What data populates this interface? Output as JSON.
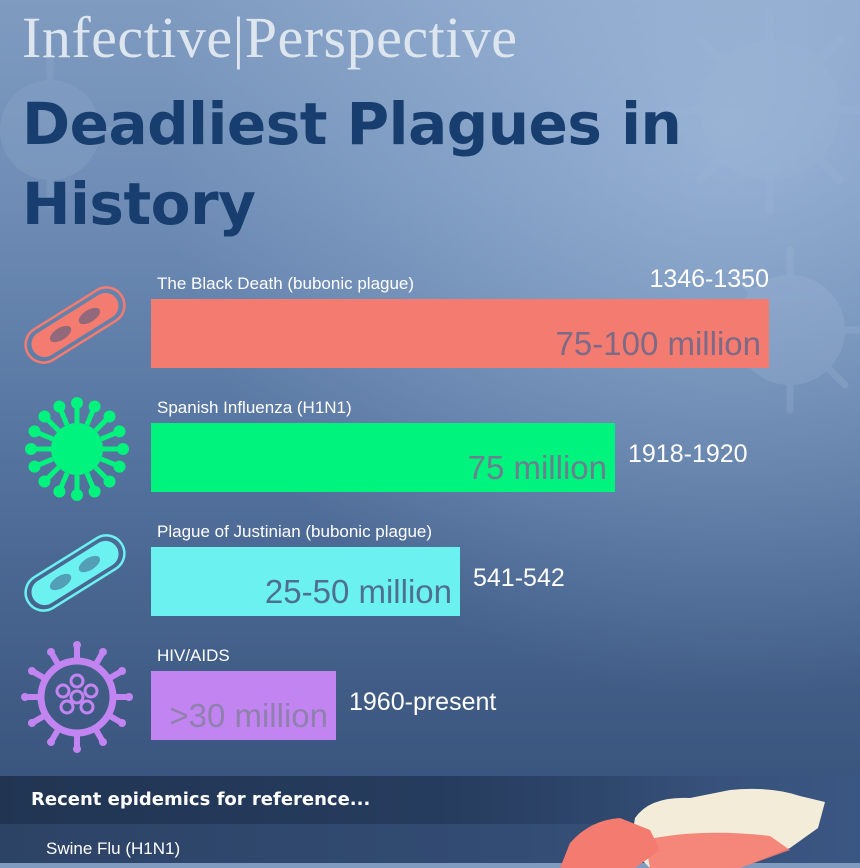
{
  "brand": "Infective|Perspective",
  "title": "Deadliest Plagues in History",
  "colors": {
    "title": "#173e6e",
    "black_death": "#f47b6f",
    "spanish_flu": "#00f37d",
    "justinian": "#6cf1f1",
    "hiv": "#c184f1"
  },
  "chart_data": {
    "type": "bar",
    "orientation": "horizontal",
    "unit": "deaths",
    "categories": [
      "The Black Death (bubonic plague)",
      "Spanish Influenza (H1N1)",
      "Plague of Justinian (bubonic plague)",
      "HIV/AIDS"
    ],
    "values": [
      100,
      75,
      50,
      30
    ],
    "value_labels": [
      "75-100 million",
      "75 million",
      "25-50 million",
      ">30 million"
    ],
    "years": [
      "1346-1350",
      "1918-1920",
      "541-542",
      "1960-present"
    ],
    "icons": [
      "bacillus-icon",
      "virus-icon",
      "bacillus-icon",
      "hiv-virus-icon"
    ],
    "bar_colors": [
      "#f47b6f",
      "#00f37d",
      "#6cf1f1",
      "#c184f1"
    ],
    "value_text_colors": [
      "#7d6a86",
      "#6a7f8f",
      "#4f6f8f",
      "#8f80ad"
    ],
    "xlim": [
      0,
      100
    ],
    "grid": false,
    "legend": "none"
  },
  "recent": {
    "heading": "Recent epidemics for reference...",
    "items": [
      "Swine Flu (H1N1)"
    ]
  }
}
